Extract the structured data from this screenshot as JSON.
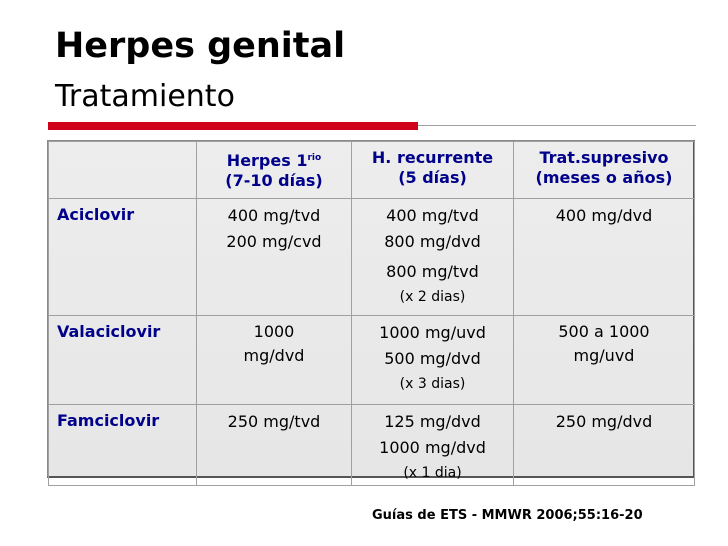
{
  "title": "Herpes genital",
  "subtitle": "Tratamiento",
  "table": {
    "headers": {
      "col1_main": "Herpes 1",
      "col1_sup": "rio",
      "col1_sub": "(7-10 días)",
      "col2_main": "H. recurrente",
      "col2_sub": "(5 días)",
      "col3_main": "Trat.supresivo",
      "col3_sub": "(meses o años)"
    },
    "rows": [
      {
        "drug": "Aciclovir",
        "col1": [
          "400 mg/tvd",
          "200 mg/cvd"
        ],
        "col2": [
          "400 mg/tvd",
          "800 mg/dvd",
          "800 mg/tvd"
        ],
        "col2_note": "(x 2 dias)",
        "col3": [
          "400 mg/dvd"
        ]
      },
      {
        "drug": "Valaciclovir",
        "col1": [
          "1000",
          "mg/dvd"
        ],
        "col2": [
          "1000 mg/uvd",
          "500 mg/dvd"
        ],
        "col2_note": "(x 3 dias)",
        "col3": [
          "500 a 1000",
          "mg/uvd"
        ]
      },
      {
        "drug": "Famciclovir",
        "col1": [
          "250 mg/tvd"
        ],
        "col2": [
          "125 mg/dvd",
          "1000 mg/dvd"
        ],
        "col2_note": "(x 1 dia)",
        "col3": [
          "250 mg/dvd"
        ]
      }
    ]
  },
  "footer": "Guías de ETS - MMWR 2006;55:16-20",
  "colors": {
    "accent_red": "#d0021b",
    "header_blue": "#00008b"
  }
}
